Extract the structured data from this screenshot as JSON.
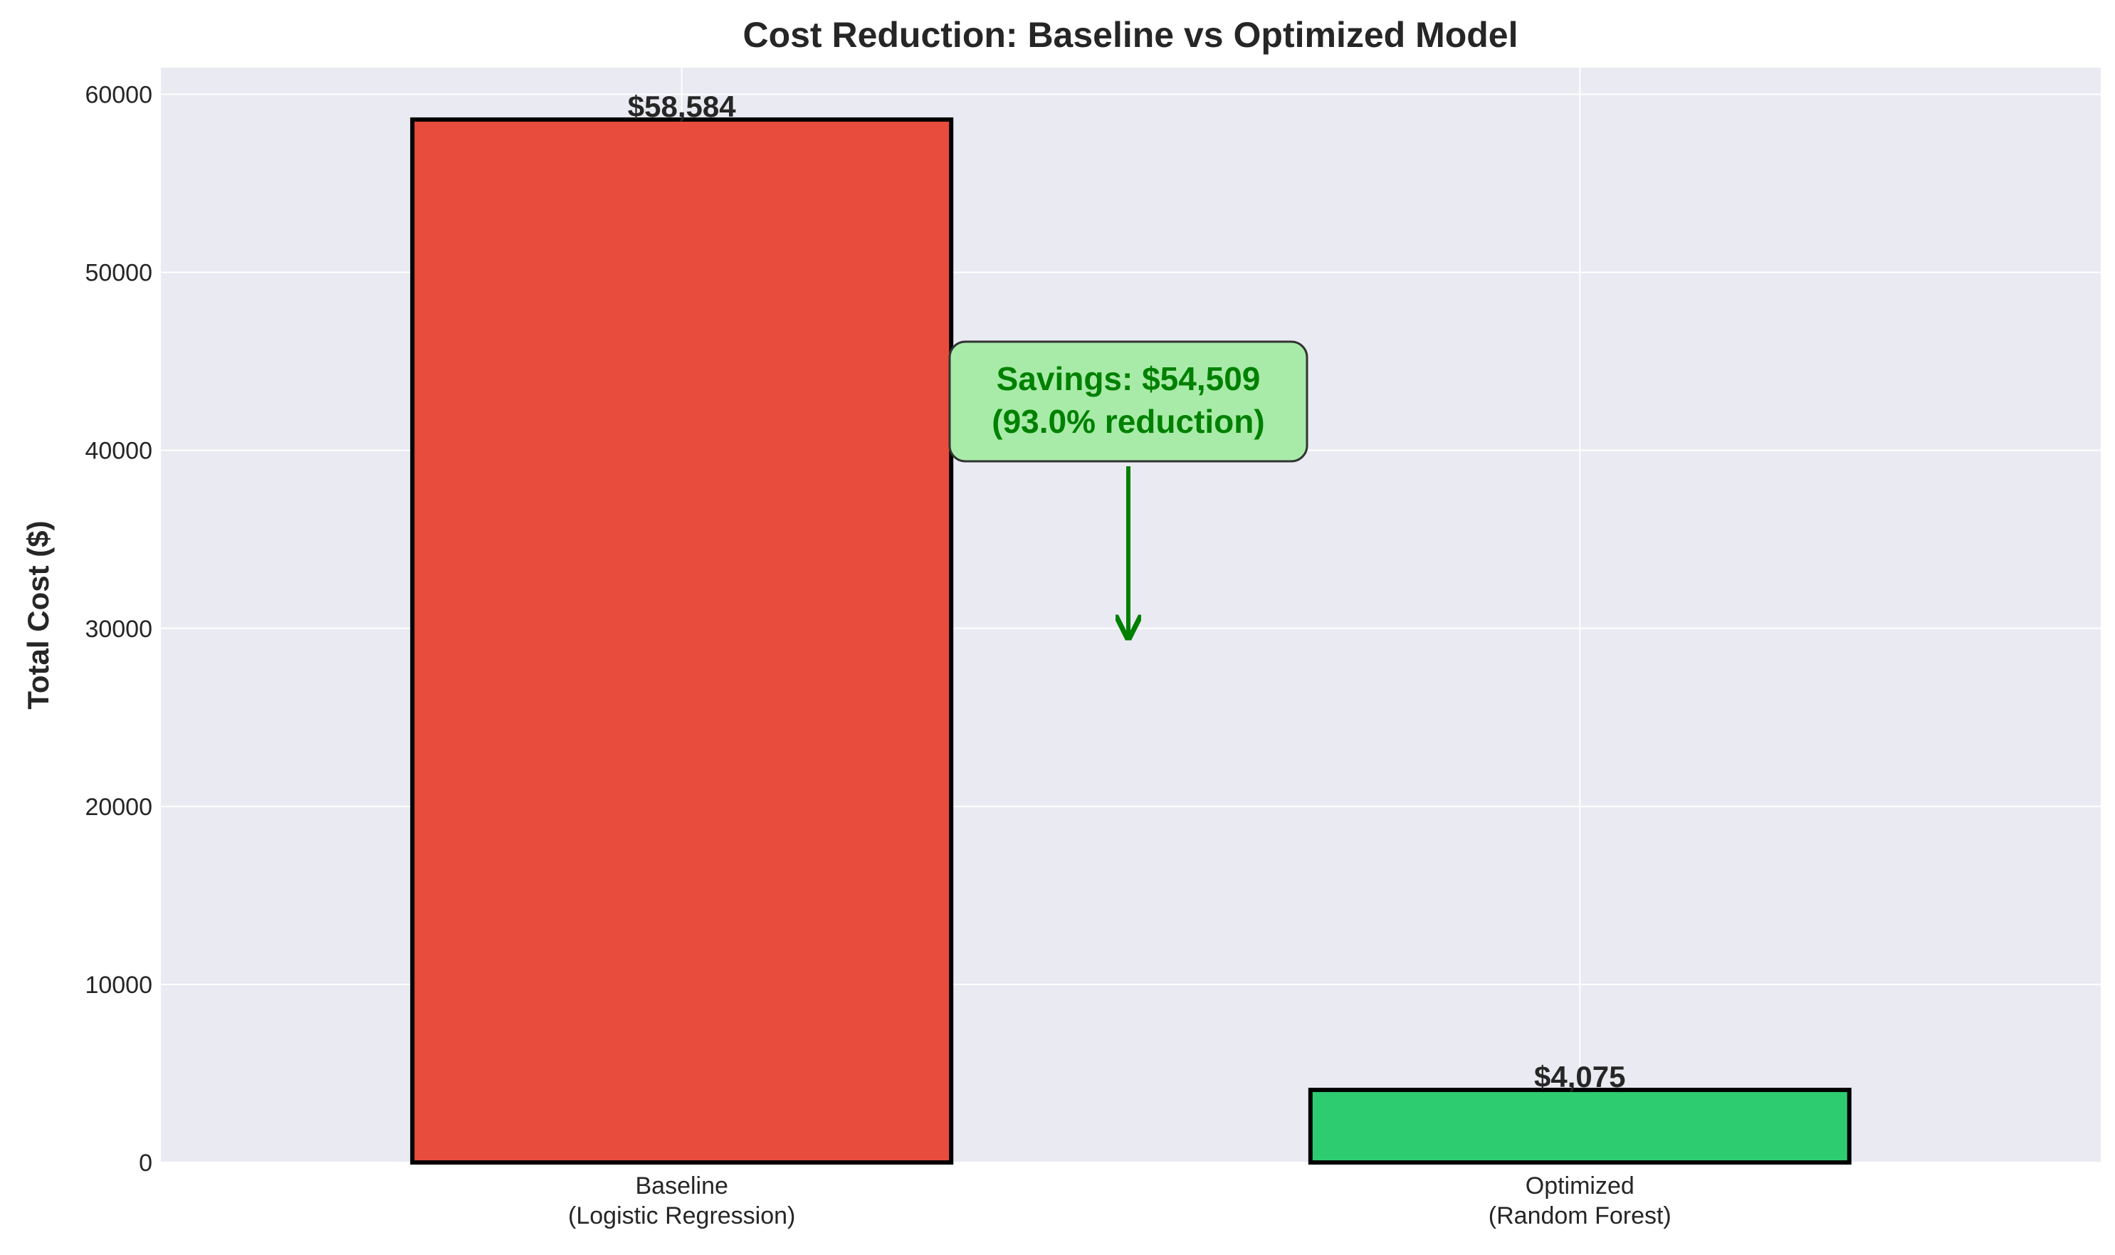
{
  "chart_data": {
    "type": "bar",
    "title": "Cost Reduction: Baseline vs Optimized Model",
    "xlabel": "",
    "ylabel": "Total Cost ($)",
    "ylim": [
      0,
      61500
    ],
    "yticks": [
      0,
      10000,
      20000,
      30000,
      40000,
      50000,
      60000
    ],
    "ytick_labels": [
      "0",
      "10000",
      "20000",
      "30000",
      "40000",
      "50000",
      "60000"
    ],
    "categories": [
      "Baseline\n(Logistic Regression)",
      "Optimized\n(Random Forest)"
    ],
    "category_lines": [
      [
        "Baseline",
        "(Logistic Regression)"
      ],
      [
        "Optimized",
        "(Random Forest)"
      ]
    ],
    "values": [
      58584,
      4075
    ],
    "value_labels": [
      "$58,584",
      "$4,075"
    ],
    "colors": {
      "bars": [
        "#e74c3c",
        "#2ecc71"
      ],
      "plot_background": "#eaeaf2",
      "grid": "#ffffff",
      "annotation_text": "#008000",
      "annotation_box": "#a8eba8",
      "bar_edge": "#000000"
    },
    "grid": true,
    "annotation": {
      "lines": [
        "Savings: $54,509",
        "(93.0% reduction)"
      ],
      "arrow_target_value": 29292
    }
  }
}
